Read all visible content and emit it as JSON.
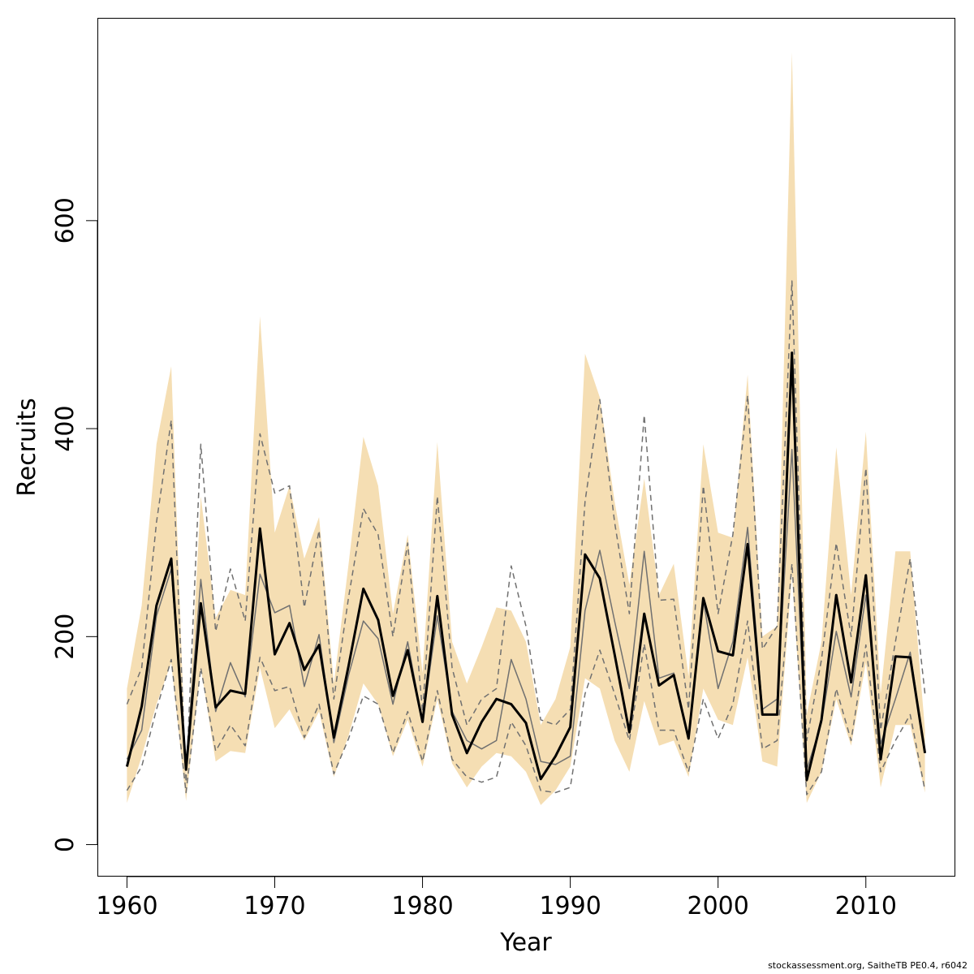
{
  "chart_data": {
    "type": "line",
    "title": "",
    "xlabel": "Year",
    "ylabel": "Recruits",
    "xlim": [
      1958,
      2016
    ],
    "ylim": [
      -30,
      795
    ],
    "x_ticks": [
      1960,
      1970,
      1980,
      1990,
      2000,
      2010
    ],
    "y_ticks": [
      0,
      200,
      400,
      600
    ],
    "grid": false,
    "colors": {
      "band": "#f5deb3",
      "median": "#000000",
      "mean": "#707070",
      "dashed": "#707070"
    },
    "x": [
      1960,
      1961,
      1962,
      1963,
      1964,
      1965,
      1966,
      1967,
      1968,
      1969,
      1970,
      1971,
      1972,
      1973,
      1974,
      1975,
      1976,
      1977,
      1978,
      1979,
      1980,
      1981,
      1982,
      1983,
      1984,
      1985,
      1986,
      1987,
      1988,
      1989,
      1990,
      1991,
      1992,
      1993,
      1994,
      1995,
      1996,
      1997,
      1998,
      1999,
      2000,
      2001,
      2002,
      2003,
      2004,
      2005,
      2006,
      2007,
      2008,
      2009,
      2010,
      2011,
      2012,
      2013,
      2014
    ],
    "series": [
      {
        "role": "band_upper",
        "values": [
          150,
          230,
          385,
          460,
          65,
          335,
          218,
          245,
          240,
          508,
          300,
          345,
          275,
          315,
          155,
          270,
          392,
          345,
          222,
          298,
          165,
          387,
          195,
          155,
          190,
          228,
          225,
          195,
          115,
          140,
          190,
          472,
          430,
          330,
          250,
          352,
          240,
          270,
          162,
          385,
          300,
          295,
          452,
          200,
          210,
          762,
          125,
          195,
          382,
          240,
          397,
          145,
          282,
          282,
          110
        ]
      },
      {
        "role": "band_lower",
        "values": [
          40,
          85,
          135,
          175,
          42,
          170,
          80,
          90,
          88,
          170,
          112,
          130,
          100,
          128,
          65,
          105,
          155,
          135,
          85,
          120,
          75,
          140,
          78,
          55,
          75,
          88,
          85,
          70,
          38,
          52,
          75,
          160,
          150,
          100,
          70,
          138,
          95,
          100,
          65,
          150,
          120,
          115,
          180,
          80,
          75,
          260,
          40,
          70,
          140,
          95,
          175,
          55,
          115,
          115,
          50
        ]
      },
      {
        "role": "dashed_upper",
        "values": [
          135,
          170,
          310,
          408,
          60,
          385,
          205,
          265,
          215,
          395,
          338,
          345,
          228,
          302,
          140,
          238,
          323,
          298,
          200,
          290,
          128,
          335,
          170,
          115,
          140,
          150,
          268,
          210,
          120,
          115,
          130,
          330,
          428,
          310,
          222,
          413,
          235,
          236,
          130,
          345,
          222,
          298,
          432,
          188,
          210,
          542,
          100,
          178,
          290,
          200,
          362,
          110,
          195,
          275,
          145
        ]
      },
      {
        "role": "dashed_lower",
        "values": [
          52,
          75,
          130,
          178,
          50,
          170,
          90,
          115,
          95,
          180,
          148,
          152,
          103,
          135,
          68,
          102,
          143,
          135,
          88,
          128,
          80,
          148,
          82,
          65,
          60,
          65,
          118,
          95,
          52,
          50,
          55,
          145,
          187,
          145,
          100,
          193,
          110,
          110,
          70,
          140,
          102,
          135,
          215,
          92,
          100,
          270,
          48,
          70,
          150,
          100,
          192,
          70,
          100,
          125,
          52
        ]
      },
      {
        "role": "mean",
        "values": [
          82,
          110,
          220,
          265,
          77,
          255,
          128,
          175,
          142,
          260,
          223,
          230,
          152,
          202,
          98,
          163,
          215,
          198,
          135,
          195,
          118,
          220,
          128,
          100,
          92,
          100,
          178,
          140,
          80,
          77,
          85,
          225,
          283,
          215,
          150,
          282,
          160,
          165,
          103,
          235,
          150,
          195,
          305,
          130,
          140,
          380,
          72,
          117,
          205,
          142,
          240,
          97,
          140,
          185,
          88
        ]
      },
      {
        "role": "median",
        "values": [
          75,
          133,
          230,
          275,
          72,
          232,
          132,
          148,
          145,
          304,
          183,
          213,
          168,
          192,
          103,
          172,
          246,
          216,
          143,
          187,
          118,
          239,
          125,
          88,
          118,
          140,
          135,
          117,
          63,
          85,
          113,
          279,
          256,
          183,
          108,
          222,
          153,
          163,
          102,
          237,
          186,
          182,
          289,
          125,
          125,
          473,
          62,
          120,
          240,
          156,
          259,
          82,
          181,
          180,
          88
        ]
      }
    ]
  },
  "footer": {
    "text": "stockassessment.org, SaitheTB  PE0.4, r6042"
  }
}
